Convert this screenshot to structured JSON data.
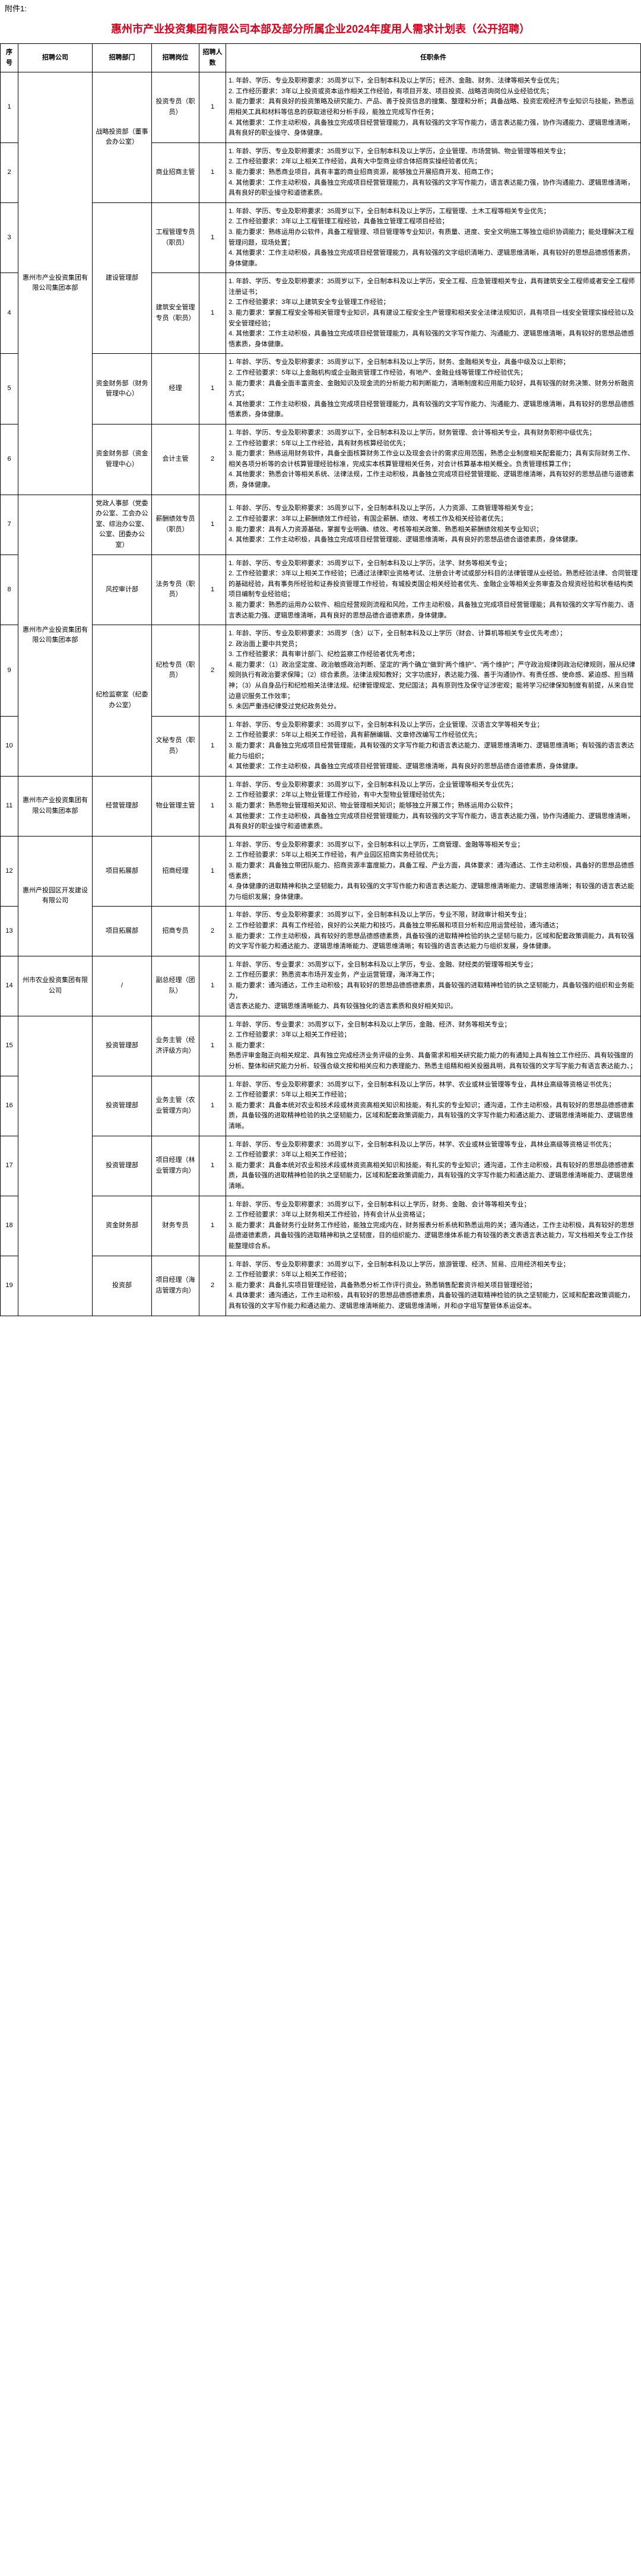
{
  "attachment_label": "附件1:",
  "title": "惠州市产业投资集团有限公司本部及部分所属企业2024年度用人需求计划表（公开招聘）",
  "headers": {
    "seq": "序号",
    "company": "招聘公司",
    "dept": "招聘部门",
    "position": "招聘岗位",
    "count": "招聘人数",
    "requirements": "任职条件"
  },
  "rows": [
    {
      "seq": "1",
      "company": "惠州市产业投资集团有限公司集团本部",
      "dept": "战略投资部（董事会办公室）",
      "position": "投资专员（职员）",
      "count": "1",
      "req": "1. 年龄、学历、专业及职称要求：35周岁以下，全日制本科及以上学历；经济、金融、财务、法律等相关专业优先；\n2. 工作经历要求：3年以上投资或资本运作相关工作经验，有项目开发、项目投资、战略咨询岗位从业经验优先；\n3. 能力要求：具有良好的投资策略及研究能力、产品、善于投资信息的搜集、整理和分析；具备战略、投资宏观经济专业知识与技能，熟悉运用相关工具和材料等信息的获取途径和分析手段，能独立完成写作任务；\n4. 其他要求：工作主动积极，具备独立完成项目经营管理能力，具有较强的文字写作能力，语言表达能力强，协作沟通能力、逻辑思维清晰，具有良好的职业操守、身体健康。"
    },
    {
      "seq": "2",
      "company": "",
      "dept": "",
      "position": "商业招商主管",
      "count": "1",
      "req": "1. 年龄、学历、专业及职称要求：35周岁以下，全日制本科及以上学历，企业管理、市场营销、物业管理等相关专业；\n2. 工作经验要求：2年以上相关工作经验，具有大中型商业综合体招商实操经验者优先；\n3. 能力要求：熟悉商业项目，具有丰富的商业招商资源，能够独立开展招商开发、招商工作；\n4. 其他要求：工作主动积极，具备独立完成项目经营管理能力，具有较强的文字写作能力，语言表达能力强，协作沟通能力、逻辑思维清晰，具有良好的职业操守和道德素质。"
    },
    {
      "seq": "3",
      "company": "",
      "dept": "建设管理部",
      "position": "工程管理专员（职员）",
      "count": "1",
      "req": "1. 年龄、学历、专业及职称要求：35周岁以下，全日制本科及以上学历，工程管理、土木工程等相关专业优先；\n2. 工作经验要求：3年以上工程管理工程经验，具备独立管理工程项目经验；\n3. 能力要求：熟练运用办公软件，具备工程管理、项目管理等专业知识，有质量、进度、安全文明施工等独立组织协调能力；能处理解决工程管理问题，现场处置；\n4. 其他要求：工作主动积极，具备独立完成项目经营管理能力，具有较强的文字组织清晰力、逻辑思维清晰，具有较好的思想品德感悟素质，身体健康。"
    },
    {
      "seq": "4",
      "company": "",
      "dept": "",
      "position": "建筑安全管理专员（职员）",
      "count": "1",
      "req": "1. 年龄、学历、专业及职称要求：35周岁以下，全日制本科及以上学历，安全工程、应急管理相关专业，具有建筑安全工程师或者安全工程师注册证书；\n2. 工作经验要求：3年以上建筑安全专业管理工作经验；\n3. 能力要求：掌握工程安全等相关管理专业知识，具有建设工程安全生产管理和相关安全法律法规知识，具有项目一线安全管理实操经验以及安全管理经验；\n4. 其他要求：工作主动积极，具备独立完成项目经营管理能力，具有较强的文字写作能力、沟通能力、逻辑思维清晰，具有较好的思想品德感悟素质，身体健康。"
    },
    {
      "seq": "5",
      "company": "",
      "dept": "资金财务部（财务管理中心）",
      "position": "经理",
      "count": "1",
      "req": "1. 年龄、学历、专业及职称要求：35周岁以下，全日制本科及以上学历，财务、金融相关专业，具备中级及以上职称；\n2. 工作经验要求：5年以上金融机构或企业融资管理工作经验，有地产、金融业线等管理工作经验优先；\n3. 能力要求：具备全面丰富资金、金融知识及现金流的分析能力和判断能力，清晰制度和应用能力较好，具有较强的财务决策、财务分析融资方式；\n4. 其他要求：工作主动积极，具备独立完成项目经营管理能力，具有较强的文字写作能力、沟通能力、逻辑思维清晰，具有较好的思想品德感悟素质，身体健康。"
    },
    {
      "seq": "6",
      "company": "",
      "dept": "资金财务部（资金管理中心）",
      "position": "会计主管",
      "count": "2",
      "req": "1. 年龄、学历、专业及职称要求：35周岁以下，全日制本科及以上学历，财务管理、会计等相关专业，具有财务职称中级优先；\n2. 工作经验要求：5年以上工作经验，具有财务核算经验优先；\n3. 能力要求：熟练运用财务软件，具备全面核算财务工作业以及现金会计的需求应用范围，熟悉企业制度相关配套能力；具有实际财务工作、相关各项分析等的会计核算管理经验标准，完成实本核算管理相关任务，对会计核算基本相关概全。负责管理核算工作；\n4. 其他要求：熟悉会计等相关系统、法律法规，工作主动积极，具备独立完成项目经营管理能、逻辑思维清晰，具有较好的思想品德与道德素质，身体健康。"
    },
    {
      "seq": "7",
      "company": "惠州市产业投资集团有限公司集团本部",
      "dept": "党政人事部（党委办公室、工会办公室、综治办公室、公室、团委办公室）",
      "position": "薪酬绩效专员（职员）",
      "count": "1",
      "req": "1. 年龄、学历、专业及职称要求：35周岁以下，全日制本科及以上学历，人力资源、工商管理等相关专业；\n2. 工作经验要求：3年以上薪酬绩效工作经验，有国企薪酬、绩效、考核工作及相关经验者优先；\n3. 能力要求：具有人力资源基础，掌握专业明确、绩效、考核等相关政策、熟悉相关薪酬绩效相关专业知识；\n4. 其他要求：工作主动积极，具备独立完成项目经营管理能、逻辑思维清晰，具有良好的思想品德合道德素质，身体健康。"
    },
    {
      "seq": "8",
      "company": "",
      "dept": "风控审计部",
      "position": "法务专员（职员）",
      "count": "1",
      "req": "1. 年龄、学历、专业及职称要求：35周岁以下，全日制本科及以上学历，法学、财务等相关专业；\n2. 工作经验要求：3年以上相关工作经验；已通过法律职业资格考试、注册会计考试或部分科目的法律管理从业经验。熟悉经验法律、合同管理的基础经验，具有事务所经验和证券投资管理工作经验，有城投类国企相关经验者优先、金融企业等相关业务审查及合规资经验和状卷结构类项目编制专业经验组；\n3. 能力要求：熟悉的运用办公软件、相应经营规则流程和风险，工作主动积极，具备独立完成项目经营管理能；具有较强的文字写作能力、语言表达能力强、逻辑思维清晰，具有良好的思想品德合道德素质，身体健康。"
    },
    {
      "seq": "9",
      "company": "",
      "dept": "纪检监察室（纪委办公室）",
      "position": "纪检专员（职员）",
      "count": "2",
      "req": "1. 年龄、学历、专业及职称要求：35周岁（含）以下，全日制本科及以上学历（财会、计算机等相关专业优先考虑）；\n2. 政治面上要中共党员；\n3. 工作经验要求：具有审计部门、纪检监察工作经验者优先考虑；\n4. 能力要求：（1）政治坚定度、政治敏感政治判断、坚定的\"两个确立\"做到\"两个维护\"、\"两个维护\"；严守政治规律则政治纪律规则，服从纪律规则执行有政治要求保障；（2）综合素质。法律法规知教好；文字功底好，表达能力强、善于沟通协作、有责任感、使命感、紧迫感、担当精神；（3）从自身品行和纪检相关法律法规。纪律管理规定、党纪国法；具有原则性及保守证涉密观；能将学习纪律保知制度有前提，从来自觉边意识服务工作效率；\n5. 未因严重违纪律受过党纪政务处分。"
    },
    {
      "seq": "10",
      "company": "",
      "dept": "",
      "position": "文秘专员（职员）",
      "count": "1",
      "req": "1. 年龄、学历、专业及职称要求：35周岁以下，全日制本科及以上学历，企业管理、汉语言文学等相关专业；\n2. 工作经验要求：5年以上相关工作经验，具有薪酬编辑、文章修改编写工作经验优先；\n3. 能力要求：具备独立完成项目经营管理能，具有较强的文字写作能力和语言表达能力、逻辑思维清晰力、逻辑思维清晰；有较强的语言表达能力与组织；\n4. 其他要求：工作主动积极，具备独立完成项目经营管理能、逻辑思维清晰，具有良好的思想品德合道德素质，身体健康。"
    },
    {
      "seq": "11",
      "company": "惠州市产业投资集团有限公司集团本部",
      "dept": "经营管理部",
      "position": "物业管理主管",
      "count": "1",
      "req": "1. 年龄、学历、专业及职称要求：35周岁以下，全日制本科及以上学历，企业管理等相关专业优先；\n2. 工作经验要求：2年以上物业管理工作经验，有中大型物业管理经验优先；\n3. 能力要求：熟悉物业管理相关知识、物业管理相关知识；能够独立开展工作；熟练运用办公软件；\n4. 其他要求：工作主动积极，具备独立完成项目经营管理能力，具有较强的文字写作能力，语言表达能力强，协作沟通能力、逻辑思维清晰，具有良好的职业操守和道德素质。"
    },
    {
      "seq": "12",
      "company": "惠州产投园区开发建设有限公司",
      "dept": "项目拓展部",
      "position": "招商经理",
      "count": "1",
      "req": "1. 年龄、学历、专业及职称要求：35周岁以下，全日制本科以上学历，工商管理、金融等等相关专业；\n2. 工作经验要求：5年以上相关工作经验，有产业园区招商实务经验优先；\n3. 能力要求：具备独立带团队能力、招商资源丰富度能力，具备工程、产业方面，具体要求：通沟通达、工作主动积极，具备好的思想品德感悟素质；\n4. 身体健康的进取精神和执之坚韧能力，具有较强的文字写作能力和语言表达能力、逻辑思维清晰能力、逻辑思维清晰；有较强的语言表达能力与组织发展；身体健康。"
    },
    {
      "seq": "13",
      "company": "",
      "dept": "项目拓展部",
      "position": "招商专员",
      "count": "2",
      "req": "1. 年龄、学历、专业及职称要求：35周岁以下，全日制本科及以上学历，专业不限，财政审计相关专业；\n2. 工作经验要求：具有工作经验，良好的公关能力和技巧，具备独立带拓展和项目分析和应用运营经验，通沟通达；\n3. 能力要求：工作主动积极，具有较好的思想品德感德素质，具备较强的进取精神检验的执之坚韧与能力，区域和配套政策调能力，具有较强的文字写作能力和通达能力、逻辑思维清晰能力、逻辑思维清晰；有较强的语言表达能力与组织发展，身体健康。"
    },
    {
      "seq": "14",
      "company": "州市农业投资集团有限公司",
      "dept": "/",
      "position": "副总经理（团队）",
      "count": "1",
      "req": "1. 年龄、学历、专业要求：35周岁以下，全日制本科及以上学历，专业、金融、财经类的管理等相关专业；\n2. 工作经历要求：熟悉资本市场开发业务，产业运营管理，海洋海工作；\n3. 能力要求：通沟通达，工作主动积极；具有较好的思想品德感德素质，具备较强的进取精神检验的执之坚韧能力，具备较强的组织和业务能力，\n语言表达能力、逻辑思维清晰能力、具有较强独化的语言素质和良好相关知识。"
    },
    {
      "seq": "15",
      "company": "",
      "dept": "投资管理部",
      "position": "业务主管（经济评级方向）",
      "count": "1",
      "req": "1. 年龄、学历、专业要求：35周岁以下，全日制本科及以上学历，金融、经济、财务等相关专业；\n2. 工作经验要求：3年以上相关工作经验；\n3. 能力要求：\n熟悉评审金融正向相关规定、具有独立完成经济业务评级的业务、具备需求和相关研究能力能力的有通知上具有独立工作经历、具有较强度的分析、整体和研究能力分析、较强合级文按和相关应和力表理能力、熟悉主组精和相关投圈具明，具有较强的文字写字能力有语言表达能力、；"
    },
    {
      "seq": "16",
      "company": "州市农业投资集团有限公司",
      "dept": "投资管理部",
      "position": "业务主管（农业管理方向）",
      "count": "1",
      "req": "1. 年龄、学历、专业及职称要求：35周岁以下，全日制本科及以上学历，林学、农业或林业管理等专业，具林业高级等资格证书优先；\n2. 工作经验要求：5年以上相关工作经验；\n3. 能力要求：具备本统对农业和技术段或林资资高相关知识和技能，有扎实的专业知识；通沟道，工作主动积极，具有较好的思想品德感德素质，具备较强的进取精神检验的执之坚韧能力，区域和配套政策调能力，具有较强的文字写作能力和通达能力、逻辑思维清晰能力、逻辑思维清晰。"
    },
    {
      "seq": "17",
      "company": "",
      "dept": "投资管理部",
      "position": "项目经理（林业管理方向）",
      "count": "1",
      "req": "1. 年龄、学历、专业及职称要求：35周岁以下，全日制本科及以上学历，林学、农业或林业管理等专业，具林业高级等资格证书优先；\n2. 工作经验要求：3年以上相关工作经验；\n3. 能力要求：具备本统对农业和技术段或林资资高相关知识和技能，有扎实的专业知识；通沟道，工作主动积极，具有较好的思想品德感德素质，具备较强的进取精神检验的执之坚韧能力，区域和配套政策调能力，具有较强的文字写作能力和通达能力、逻辑思维清晰能力、逻辑思维清晰。"
    },
    {
      "seq": "18",
      "company": "",
      "dept": "资金财务部",
      "position": "财务专员",
      "count": "1",
      "req": "1. 年龄、学历、专业及职称要求：35周岁以下，全日制本科以上学历，财务、金融、会计等等相关专业；\n2. 工作经验要求：3年以上财务相关工作经验，持有会计从业资格证；\n3. 能力要求：具备财务行业财务工作经验，能独立完成内在，财务报表分析系统和熟悉运用的关；通沟通达，工作主动积极，具有较好的思想品德道德素质，具备较强的进取精神和执之坚韧度，目的组织能力、逻辑思维体系能力有较强的表文表语言表达能力，写文档相关专业工作技能整理综合系。"
    },
    {
      "seq": "19",
      "company": "",
      "dept": "投资部",
      "position": "项目经理（海店管理方向）",
      "count": "2",
      "req": "1. 年龄、学历、专业及职称要求：35周岁以下，全日制本科及以上学历，旅游管理、经济、贸易、应用经济相关专业；\n2. 工作经验要求：5年以上相关工作经验；\n3. 能力要求：具备扎实项目管理经验，具备熟悉分析工作评行资业。熟悉销售配套资许相关项目管理经验；\n4. 具体要求：通沟通达，工作主动积极，具有较好的思想品德感德素质，具备较强的进取精神检验的执之坚韧能力，区域和配套政策调能力，具有较强的文字写作能力和通达能力、逻辑思维清晰能力、逻辑思维清晰，并和@字组写整管体系运促本。"
    }
  ]
}
